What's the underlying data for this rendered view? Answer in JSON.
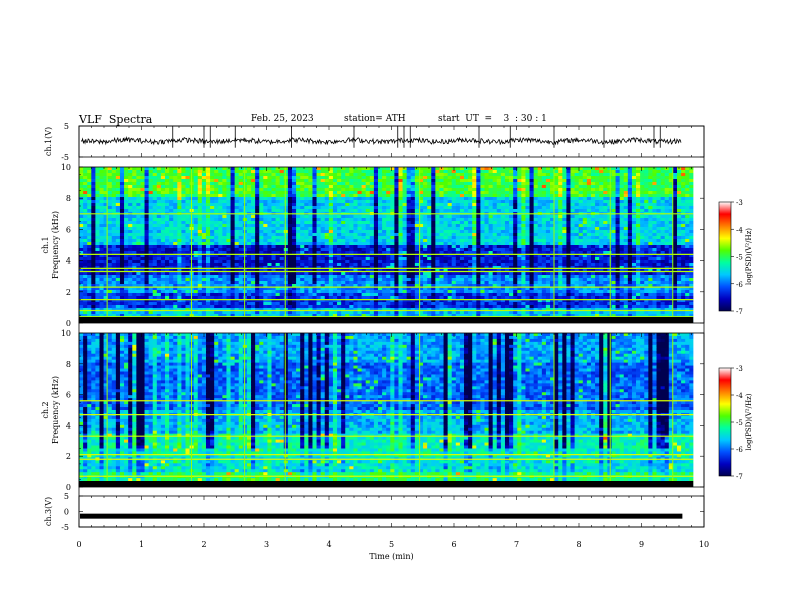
{
  "header": {
    "title": "VLF  Spectra",
    "date": "Feb. 25, 2023",
    "station": "station= ATH",
    "start": "start  UT  =    3  : 30 : 1"
  },
  "chart_data": [
    {
      "type": "line",
      "name": "ch1-waveform",
      "ylabel": "ch.1(V)",
      "ylim": [
        -5,
        5
      ],
      "yticks": [
        "5",
        "-5"
      ],
      "xlim": [
        0,
        10
      ],
      "note_level": 0.2,
      "spikes_x": [
        1.5,
        2.0,
        2.1,
        2.5,
        3.4,
        4.4,
        5.1,
        5.2,
        5.3,
        6.4,
        6.9,
        7.6,
        8.4,
        9.2,
        9.3
      ]
    },
    {
      "type": "heatmap",
      "name": "ch1-spectrogram",
      "ylabel": "ch.1\nFrequency  (kHz)",
      "ylim": [
        0,
        10
      ],
      "yticks": [
        "0",
        "2",
        "4",
        "6",
        "8",
        "10"
      ],
      "xlim": [
        0,
        10
      ],
      "data_x_end": 9.83,
      "colorbar": {
        "label": "log(PSD)(V²/Hz)",
        "range": [
          -7,
          -3
        ],
        "ticks": [
          "-3",
          "-4",
          "-5",
          "-6",
          "-7"
        ]
      },
      "bright_lines_x": [
        0.45,
        1.8,
        2.65,
        3.3,
        5.45,
        7.6,
        8.5,
        9.5
      ]
    },
    {
      "type": "heatmap",
      "name": "ch2-spectrogram",
      "ylabel": "ch.2\nFrequency  (kHz)",
      "ylim": [
        0,
        10
      ],
      "yticks": [
        "0",
        "2",
        "4",
        "6",
        "8",
        "10"
      ],
      "xlim": [
        0,
        10
      ],
      "data_x_end": 9.83,
      "colorbar": {
        "label": "log(PSD)(V²/Hz)",
        "range": [
          -7,
          -3
        ],
        "ticks": [
          "-3",
          "-4",
          "-5",
          "-6",
          "-7"
        ]
      },
      "bright_lines_x": [
        0.45,
        1.8,
        2.65,
        3.3,
        5.45,
        7.6,
        8.5,
        9.5
      ]
    },
    {
      "type": "line",
      "name": "ch3-waveform",
      "ylabel": "ch.3(V)",
      "ylim": [
        -5,
        5
      ],
      "yticks": [
        "5",
        "0",
        "-5"
      ],
      "xlim": [
        0,
        10
      ],
      "level": -1.5
    }
  ],
  "x_axis": {
    "label": "Time  (min)",
    "ticks": [
      "0",
      "1",
      "2",
      "3",
      "4",
      "5",
      "6",
      "7",
      "8",
      "9",
      "10"
    ]
  },
  "colors": {
    "colormap": [
      "#000050",
      "#0000c0",
      "#0050ff",
      "#00c8ff",
      "#00ffa0",
      "#50ff00",
      "#ffff00",
      "#ff8000",
      "#ff0000",
      "#ffffff"
    ]
  }
}
